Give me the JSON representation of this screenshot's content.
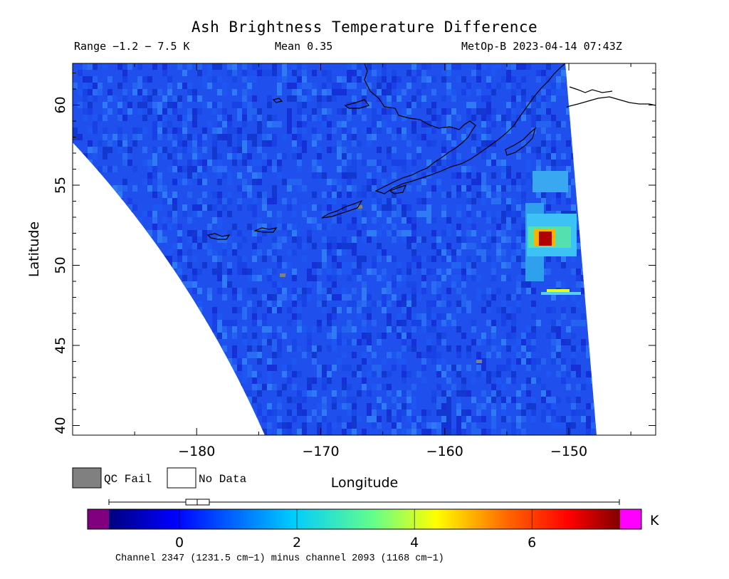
{
  "header": {
    "title": "Ash Brightness Temperature Difference",
    "range": "Range −1.2 − 7.5 K",
    "mean": "Mean 0.35",
    "satellite_time": "MetOp-B 2023-04-14 07:43Z"
  },
  "map": {
    "xlabel": "Longitude",
    "ylabel": "Latitude",
    "lon_range": [
      -190,
      -143
    ],
    "lat_range": [
      39.4,
      62.6
    ],
    "x_ticks": [
      -180,
      -170,
      -160,
      -150
    ],
    "y_ticks": [
      40,
      45,
      50,
      55,
      60
    ],
    "base_color": "#1f50ee",
    "ash_hotspot": {
      "lon": -151.6,
      "lat": 51.7,
      "peak_K": 7.2
    }
  },
  "legend": {
    "qc_fail_label": "QC Fail",
    "no_data_label": "No Data",
    "qc_fail_color": "#808080",
    "no_data_color": "#ffffff"
  },
  "colorbar": {
    "unit": "K",
    "ticks": [
      "0",
      "2",
      "4",
      "6"
    ],
    "range": [
      -1.2,
      7.5
    ],
    "underflow_color": "#800080",
    "overflow_color": "#ff00ff",
    "caption": "Channel 2347 (1231.5 cm−1) minus channel 2093 (1168 cm−1)"
  }
}
